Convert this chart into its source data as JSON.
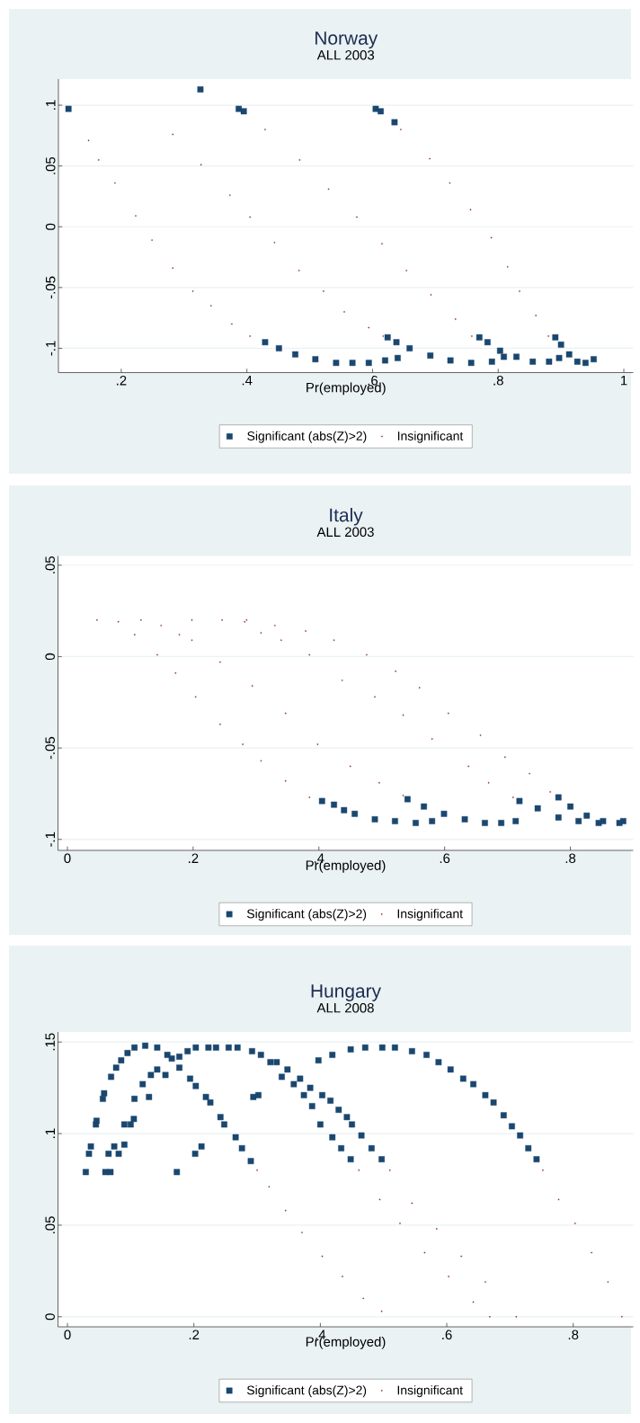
{
  "chart_data": [
    {
      "type": "scatter",
      "title": "Norway",
      "subtitle": "ALL 2003",
      "xlabel": "Pr(employed)",
      "xlim": [
        0.1,
        1.015
      ],
      "ylim": [
        -0.12,
        0.1215
      ],
      "xticks": [
        {
          "value": 0.2,
          "label": ".2"
        },
        {
          "value": 0.4,
          "label": ".4"
        },
        {
          "value": 0.6,
          "label": ".6"
        },
        {
          "value": 0.8,
          "label": ".8"
        },
        1
      ],
      "yticks": [
        {
          "value": -0.1,
          "label": "-.1"
        },
        {
          "value": -0.05,
          "label": "-.05"
        },
        0,
        {
          "value": 0.05,
          "label": ".05"
        },
        {
          "value": 0.1,
          "label": ".1"
        }
      ],
      "grid": "y",
      "legend": "bottom",
      "series": [
        {
          "name": "Significant (abs(Z)>2)",
          "color": "#1a476f",
          "marker": "square",
          "x": [
            0.116,
            0.326,
            0.387,
            0.395,
            0.605,
            0.613,
            0.635,
            0.624,
            0.77,
            0.891,
            0.429,
            0.451,
            0.477,
            0.509,
            0.542,
            0.568,
            0.594,
            0.62,
            0.64,
            0.638,
            0.659,
            0.692,
            0.724,
            0.757,
            0.79,
            0.809,
            0.783,
            0.803,
            0.829,
            0.855,
            0.881,
            0.897,
            0.9,
            0.913,
            0.926,
            0.939,
            0.952
          ],
          "values": [
            0.097,
            0.113,
            0.097,
            0.095,
            0.097,
            0.095,
            0.086,
            -0.091,
            -0.091,
            -0.091,
            -0.095,
            -0.1,
            -0.105,
            -0.109,
            -0.112,
            -0.112,
            -0.112,
            -0.11,
            -0.108,
            -0.095,
            -0.1,
            -0.106,
            -0.11,
            -0.112,
            -0.111,
            -0.107,
            -0.095,
            -0.102,
            -0.107,
            -0.111,
            -0.111,
            -0.108,
            -0.097,
            -0.105,
            -0.111,
            -0.112,
            -0.109
          ]
        },
        {
          "name": "Insignificant",
          "color": "#90353b",
          "marker": "circle",
          "x": [
            0.148,
            0.164,
            0.19,
            0.223,
            0.249,
            0.282,
            0.314,
            0.343,
            0.376,
            0.405,
            0.282,
            0.327,
            0.373,
            0.405,
            0.444,
            0.483,
            0.522,
            0.555,
            0.594,
            0.617,
            0.429,
            0.484,
            0.53,
            0.575,
            0.615,
            0.654,
            0.693,
            0.732,
            0.758,
            0.645,
            0.691,
            0.723,
            0.756,
            0.789,
            0.815,
            0.834,
            0.86,
            0.88
          ],
          "values": [
            0.071,
            0.055,
            0.036,
            0.009,
            -0.011,
            -0.034,
            -0.053,
            -0.065,
            -0.08,
            -0.09,
            0.076,
            0.051,
            0.026,
            0.008,
            -0.013,
            -0.036,
            -0.053,
            -0.07,
            -0.083,
            -0.09,
            0.08,
            0.055,
            0.031,
            0.008,
            -0.014,
            -0.036,
            -0.056,
            -0.076,
            -0.09,
            0.08,
            0.056,
            0.036,
            0.014,
            -0.009,
            -0.033,
            -0.053,
            -0.073,
            -0.09
          ]
        }
      ]
    },
    {
      "type": "scatter",
      "title": "Italy",
      "subtitle": "ALL 2003",
      "xlabel": "Pr(employed)",
      "xlim": [
        -0.015,
        0.9
      ],
      "ylim": [
        -0.106,
        0.055
      ],
      "xticks": [
        0,
        {
          "value": 0.2,
          "label": ".2"
        },
        {
          "value": 0.4,
          "label": ".4"
        },
        {
          "value": 0.6,
          "label": ".6"
        },
        {
          "value": 0.8,
          "label": ".8"
        }
      ],
      "yticks": [
        {
          "value": -0.1,
          "label": "-.1"
        },
        {
          "value": -0.05,
          "label": "-.05"
        },
        0,
        {
          "value": 0.05,
          "label": ".05"
        }
      ],
      "grid": "y",
      "legend": "bottom",
      "series": [
        {
          "name": "Significant (abs(Z)>2)",
          "color": "#1a476f",
          "marker": "square",
          "x": [
            0.405,
            0.424,
            0.44,
            0.457,
            0.489,
            0.521,
            0.554,
            0.58,
            0.541,
            0.567,
            0.599,
            0.632,
            0.664,
            0.69,
            0.713,
            0.719,
            0.748,
            0.781,
            0.813,
            0.845,
            0.884,
            0.781,
            0.8,
            0.826,
            0.852,
            0.878
          ],
          "values": [
            -0.079,
            -0.081,
            -0.084,
            -0.086,
            -0.089,
            -0.09,
            -0.091,
            -0.09,
            -0.078,
            -0.082,
            -0.086,
            -0.089,
            -0.091,
            -0.091,
            -0.09,
            -0.079,
            -0.083,
            -0.088,
            -0.09,
            -0.091,
            -0.09,
            -0.077,
            -0.082,
            -0.087,
            -0.09,
            -0.091
          ]
        },
        {
          "name": "Insignificant",
          "color": "#90353b",
          "marker": "circle",
          "x": [
            0.047,
            0.081,
            0.107,
            0.143,
            0.172,
            0.204,
            0.243,
            0.279,
            0.308,
            0.347,
            0.385,
            0.117,
            0.149,
            0.178,
            0.198,
            0.243,
            0.294,
            0.347,
            0.398,
            0.45,
            0.496,
            0.534,
            0.198,
            0.246,
            0.282,
            0.308,
            0.34,
            0.385,
            0.437,
            0.489,
            0.534,
            0.58,
            0.638,
            0.67,
            0.709,
            0.285,
            0.33,
            0.379,
            0.424,
            0.476,
            0.522,
            0.56,
            0.606,
            0.657,
            0.696,
            0.735,
            0.768
          ],
          "values": [
            0.02,
            0.019,
            0.012,
            0.001,
            -0.009,
            -0.022,
            -0.037,
            -0.048,
            -0.057,
            -0.068,
            -0.077,
            0.02,
            0.017,
            0.012,
            0.009,
            -0.003,
            -0.016,
            -0.031,
            -0.048,
            -0.06,
            -0.069,
            -0.076,
            0.02,
            0.02,
            0.019,
            0.013,
            0.009,
            0.001,
            -0.013,
            -0.022,
            -0.032,
            -0.045,
            -0.06,
            -0.069,
            -0.077,
            0.02,
            0.017,
            0.014,
            0.009,
            0.001,
            -0.008,
            -0.017,
            -0.031,
            -0.043,
            -0.055,
            -0.064,
            -0.074
          ]
        }
      ]
    },
    {
      "type": "scatter",
      "title": "Hungary",
      "subtitle": "ALL 2008",
      "xlabel": "Pr(employed)",
      "xlim": [
        -0.015,
        0.895
      ],
      "ylim": [
        -0.0055,
        0.1555
      ],
      "xticks": [
        0,
        {
          "value": 0.2,
          "label": ".2"
        },
        {
          "value": 0.4,
          "label": ".4"
        },
        {
          "value": 0.6,
          "label": ".6"
        },
        {
          "value": 0.8,
          "label": ".8"
        }
      ],
      "yticks": [
        0,
        {
          "value": 0.05,
          "label": ".05"
        },
        {
          "value": 0.1,
          "label": ".1"
        },
        {
          "value": 0.15,
          "label": ".15"
        }
      ],
      "grid": "y",
      "legend": "bottom",
      "series": [
        {
          "name": "Significant (abs(Z)>2)",
          "color": "#1a476f",
          "marker": "square",
          "x": [
            0.029,
            0.034,
            0.037,
            0.045,
            0.046,
            0.056,
            0.058,
            0.069,
            0.077,
            0.085,
            0.095,
            0.106,
            0.123,
            0.142,
            0.158,
            0.177,
            0.194,
            0.203,
            0.219,
            0.226,
            0.242,
            0.248,
            0.266,
            0.276,
            0.29,
            0.06,
            0.068,
            0.065,
            0.074,
            0.081,
            0.09,
            0.09,
            0.1,
            0.106,
            0.105,
            0.119,
            0.129,
            0.132,
            0.142,
            0.155,
            0.165,
            0.177,
            0.19,
            0.203,
            0.223,
            0.235,
            0.255,
            0.269,
            0.292,
            0.306,
            0.321,
            0.339,
            0.358,
            0.374,
            0.387,
            0.4,
            0.419,
            0.433,
            0.448,
            0.173,
            0.202,
            0.212,
            0.294,
            0.302,
            0.331,
            0.348,
            0.368,
            0.384,
            0.403,
            0.416,
            0.429,
            0.442,
            0.45,
            0.465,
            0.481,
            0.497,
            0.397,
            0.419,
            0.448,
            0.471,
            0.498,
            0.518,
            0.545,
            0.568,
            0.587,
            0.606,
            0.626,
            0.642,
            0.661,
            0.674,
            0.69,
            0.703,
            0.716,
            0.729,
            0.742
          ],
          "values": [
            0.079,
            0.089,
            0.093,
            0.105,
            0.107,
            0.119,
            0.122,
            0.131,
            0.136,
            0.14,
            0.144,
            0.147,
            0.148,
            0.147,
            0.143,
            0.136,
            0.13,
            0.126,
            0.12,
            0.117,
            0.109,
            0.105,
            0.098,
            0.092,
            0.085,
            0.079,
            0.079,
            0.089,
            0.093,
            0.089,
            0.094,
            0.105,
            0.105,
            0.119,
            0.108,
            0.127,
            0.12,
            0.132,
            0.135,
            0.132,
            0.141,
            0.142,
            0.145,
            0.147,
            0.147,
            0.147,
            0.147,
            0.147,
            0.145,
            0.143,
            0.139,
            0.131,
            0.127,
            0.121,
            0.115,
            0.105,
            0.098,
            0.092,
            0.086,
            0.079,
            0.089,
            0.093,
            0.12,
            0.121,
            0.139,
            0.135,
            0.13,
            0.125,
            0.121,
            0.118,
            0.113,
            0.109,
            0.105,
            0.099,
            0.092,
            0.086,
            0.14,
            0.143,
            0.146,
            0.147,
            0.147,
            0.147,
            0.145,
            0.143,
            0.139,
            0.135,
            0.13,
            0.127,
            0.121,
            0.117,
            0.11,
            0.104,
            0.099,
            0.092,
            0.086
          ]
        },
        {
          "name": "Insignificant",
          "color": "#90353b",
          "marker": "circle",
          "x": [
            0.3,
            0.319,
            0.345,
            0.371,
            0.403,
            0.435,
            0.468,
            0.497,
            0.461,
            0.494,
            0.526,
            0.565,
            0.603,
            0.642,
            0.668,
            0.51,
            0.545,
            0.584,
            0.623,
            0.661,
            0.71,
            0.752,
            0.777,
            0.803,
            0.829,
            0.855,
            0.877
          ],
          "values": [
            0.08,
            0.071,
            0.058,
            0.046,
            0.033,
            0.022,
            0.01,
            0.003,
            0.08,
            0.064,
            0.051,
            0.035,
            0.022,
            0.008,
            0.0,
            0.08,
            0.062,
            0.048,
            0.033,
            0.019,
            0.0,
            0.08,
            0.064,
            0.051,
            0.035,
            0.019,
            0.0
          ]
        }
      ]
    }
  ]
}
